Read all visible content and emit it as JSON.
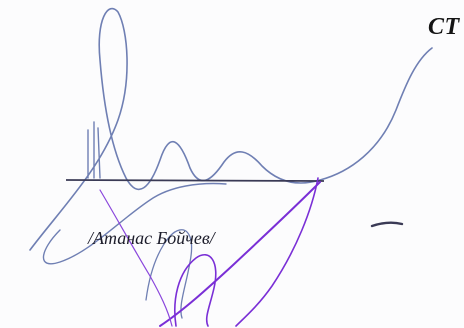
{
  "document": {
    "heading_fragment": "СТ",
    "signer_name": "/Атанас Бойчев/"
  },
  "colors": {
    "ink_blue": "#6a7bb5",
    "ink_purple": "#7a2fd6",
    "ink_dark": "#3a3a55",
    "text": "#1d1d2b"
  }
}
